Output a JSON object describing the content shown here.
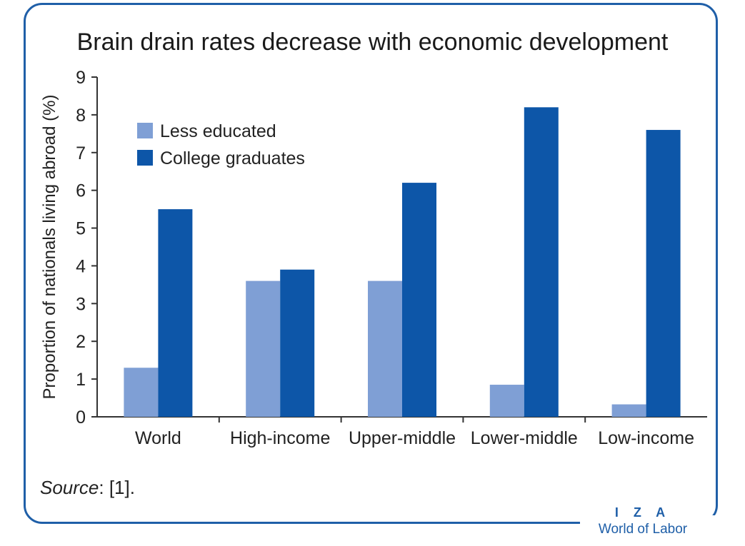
{
  "chart_data": {
    "type": "bar",
    "title": "Brain drain rates decrease with economic development",
    "xlabel": "",
    "ylabel": "Proportion of nationals living abroad (%)",
    "categories": [
      "World",
      "High-income",
      "Upper-middle",
      "Lower-middle",
      "Low-income"
    ],
    "series": [
      {
        "name": "Less educated",
        "color": "#7f9fd5",
        "values": [
          1.3,
          3.6,
          3.6,
          0.85,
          0.33
        ]
      },
      {
        "name": "College graduates",
        "color": "#0d56a8",
        "values": [
          5.5,
          3.9,
          6.2,
          8.2,
          7.6
        ]
      }
    ],
    "ylim": [
      0,
      9
    ],
    "yticks": [
      0,
      1,
      2,
      3,
      4,
      5,
      6,
      7,
      8,
      9
    ],
    "grid": false,
    "legend_position": "top-left"
  },
  "source": {
    "label": "Source",
    "text": ": [1]."
  },
  "brand": {
    "top": "I Z A",
    "bottom": "World of Labor",
    "color": "#1f5fa8"
  }
}
